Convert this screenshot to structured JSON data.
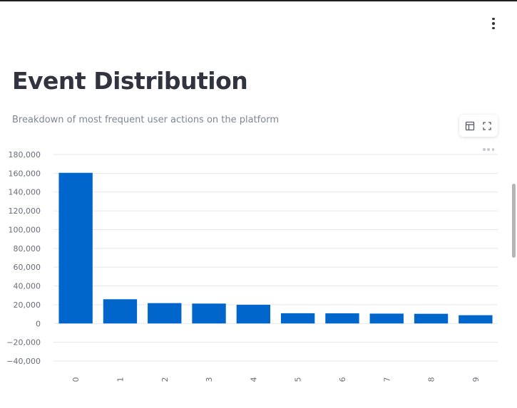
{
  "page": {
    "title": "Event Distribution",
    "caption": "Breakdown of most frequent user actions on the platform"
  },
  "toolbar": {
    "table_icon": "table-icon",
    "fullscreen_icon": "fullscreen-icon",
    "menu_icon": "more-vertical-icon",
    "chart_menu_icon": "more-horizontal-icon"
  },
  "colors": {
    "bar": "#0066cc",
    "grid": "#e6e7ea",
    "text": "#31333f",
    "muted": "#808495"
  },
  "chart_data": {
    "type": "bar",
    "categories": [
      "0",
      "1",
      "2",
      "3",
      "4",
      "5",
      "6",
      "7",
      "8",
      "9"
    ],
    "values": [
      160500,
      25800,
      21700,
      21200,
      19900,
      10900,
      10800,
      10500,
      10300,
      8800
    ],
    "yticks": [
      180000,
      160000,
      140000,
      120000,
      100000,
      80000,
      60000,
      40000,
      20000,
      0,
      -20000,
      -40000
    ],
    "ytick_labels": [
      "180,000",
      "160,000",
      "140,000",
      "120,000",
      "100,000",
      "80,000",
      "60,000",
      "40,000",
      "20,000",
      "0",
      "−20,000",
      "−40,000"
    ],
    "ylim": [
      -40000,
      180000
    ],
    "grid": true,
    "xlabel": "",
    "ylabel": "",
    "title": ""
  }
}
